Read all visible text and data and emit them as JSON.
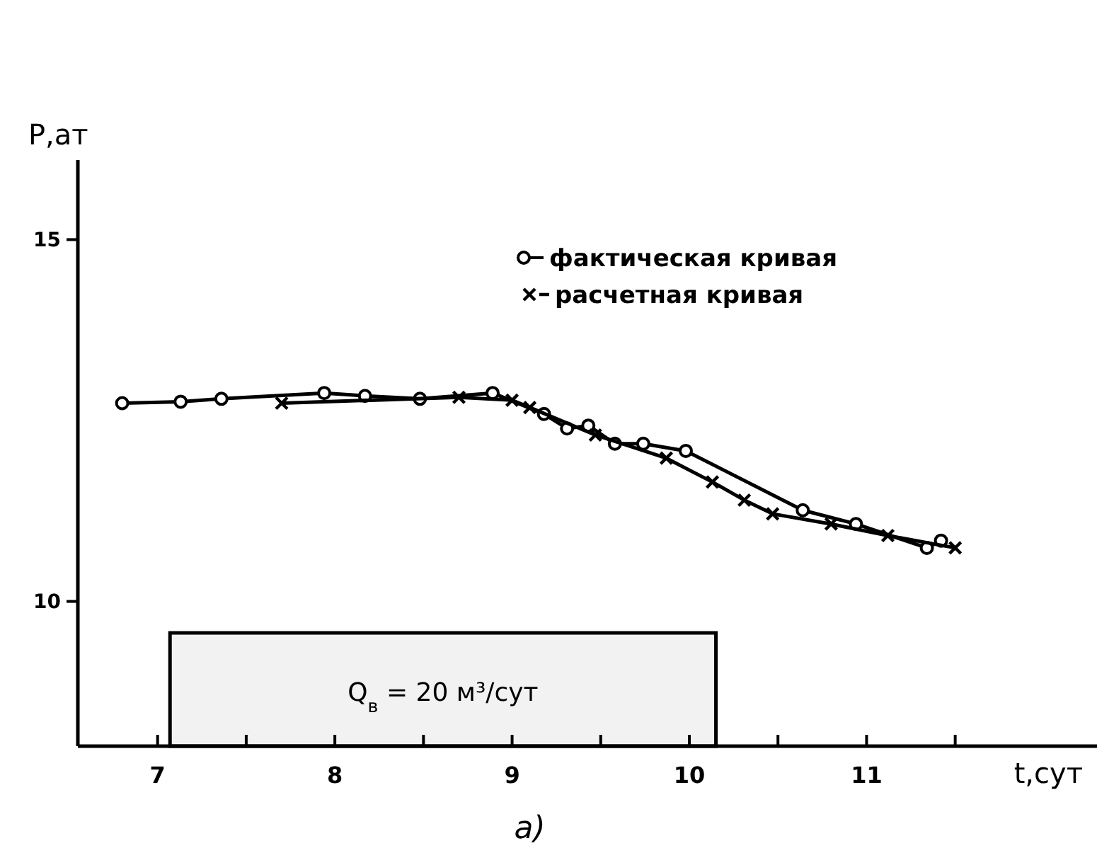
{
  "chart_data": {
    "type": "line",
    "xlabel": "t,сут",
    "ylabel": "P,ат",
    "xlim": [
      6.55,
      12.3
    ],
    "ylim": [
      8,
      16.1
    ],
    "xticks": [
      7,
      {
        "value": 7.5,
        "label": null
      },
      8,
      {
        "value": 8.5,
        "label": null
      },
      9,
      {
        "value": 9.5,
        "label": null
      },
      10,
      {
        "value": 10.5,
        "label": null
      },
      11,
      {
        "value": 11.5,
        "label": null
      }
    ],
    "yticks": [
      10,
      15
    ],
    "grid": false,
    "legend": "top right",
    "line_style": "solid",
    "series": [
      {
        "name": "фактическая кривая",
        "color": "#000000",
        "marker": "circle",
        "x": [
          6.8,
          7.13,
          7.36,
          7.94,
          8.17,
          8.48,
          8.89,
          9.18,
          9.31,
          9.43,
          9.58,
          9.74,
          9.98,
          10.64,
          10.94,
          11.34,
          11.42
        ],
        "values": [
          12.74,
          12.76,
          12.8,
          12.88,
          12.84,
          12.8,
          12.88,
          12.59,
          12.39,
          12.43,
          12.18,
          12.18,
          12.08,
          11.26,
          11.07,
          10.74,
          10.84
        ]
      },
      {
        "name": "расчетная кривая",
        "color": "#000000",
        "marker": "cross",
        "x": [
          7.7,
          8.7,
          9.0,
          9.1,
          9.47,
          9.87,
          10.13,
          10.31,
          10.47,
          10.8,
          11.12,
          11.5
        ],
        "values": [
          12.74,
          12.82,
          12.78,
          12.68,
          12.3,
          11.98,
          11.65,
          11.4,
          11.21,
          11.07,
          10.91,
          10.74
        ]
      }
    ],
    "bands": [
      {
        "axis": "x",
        "from": 7.07,
        "to": 10.15,
        "color": "#f2f2f2",
        "label": "Q$_{в}$ = 20 м³/сут"
      }
    ],
    "annotations": [
      "а)"
    ]
  }
}
